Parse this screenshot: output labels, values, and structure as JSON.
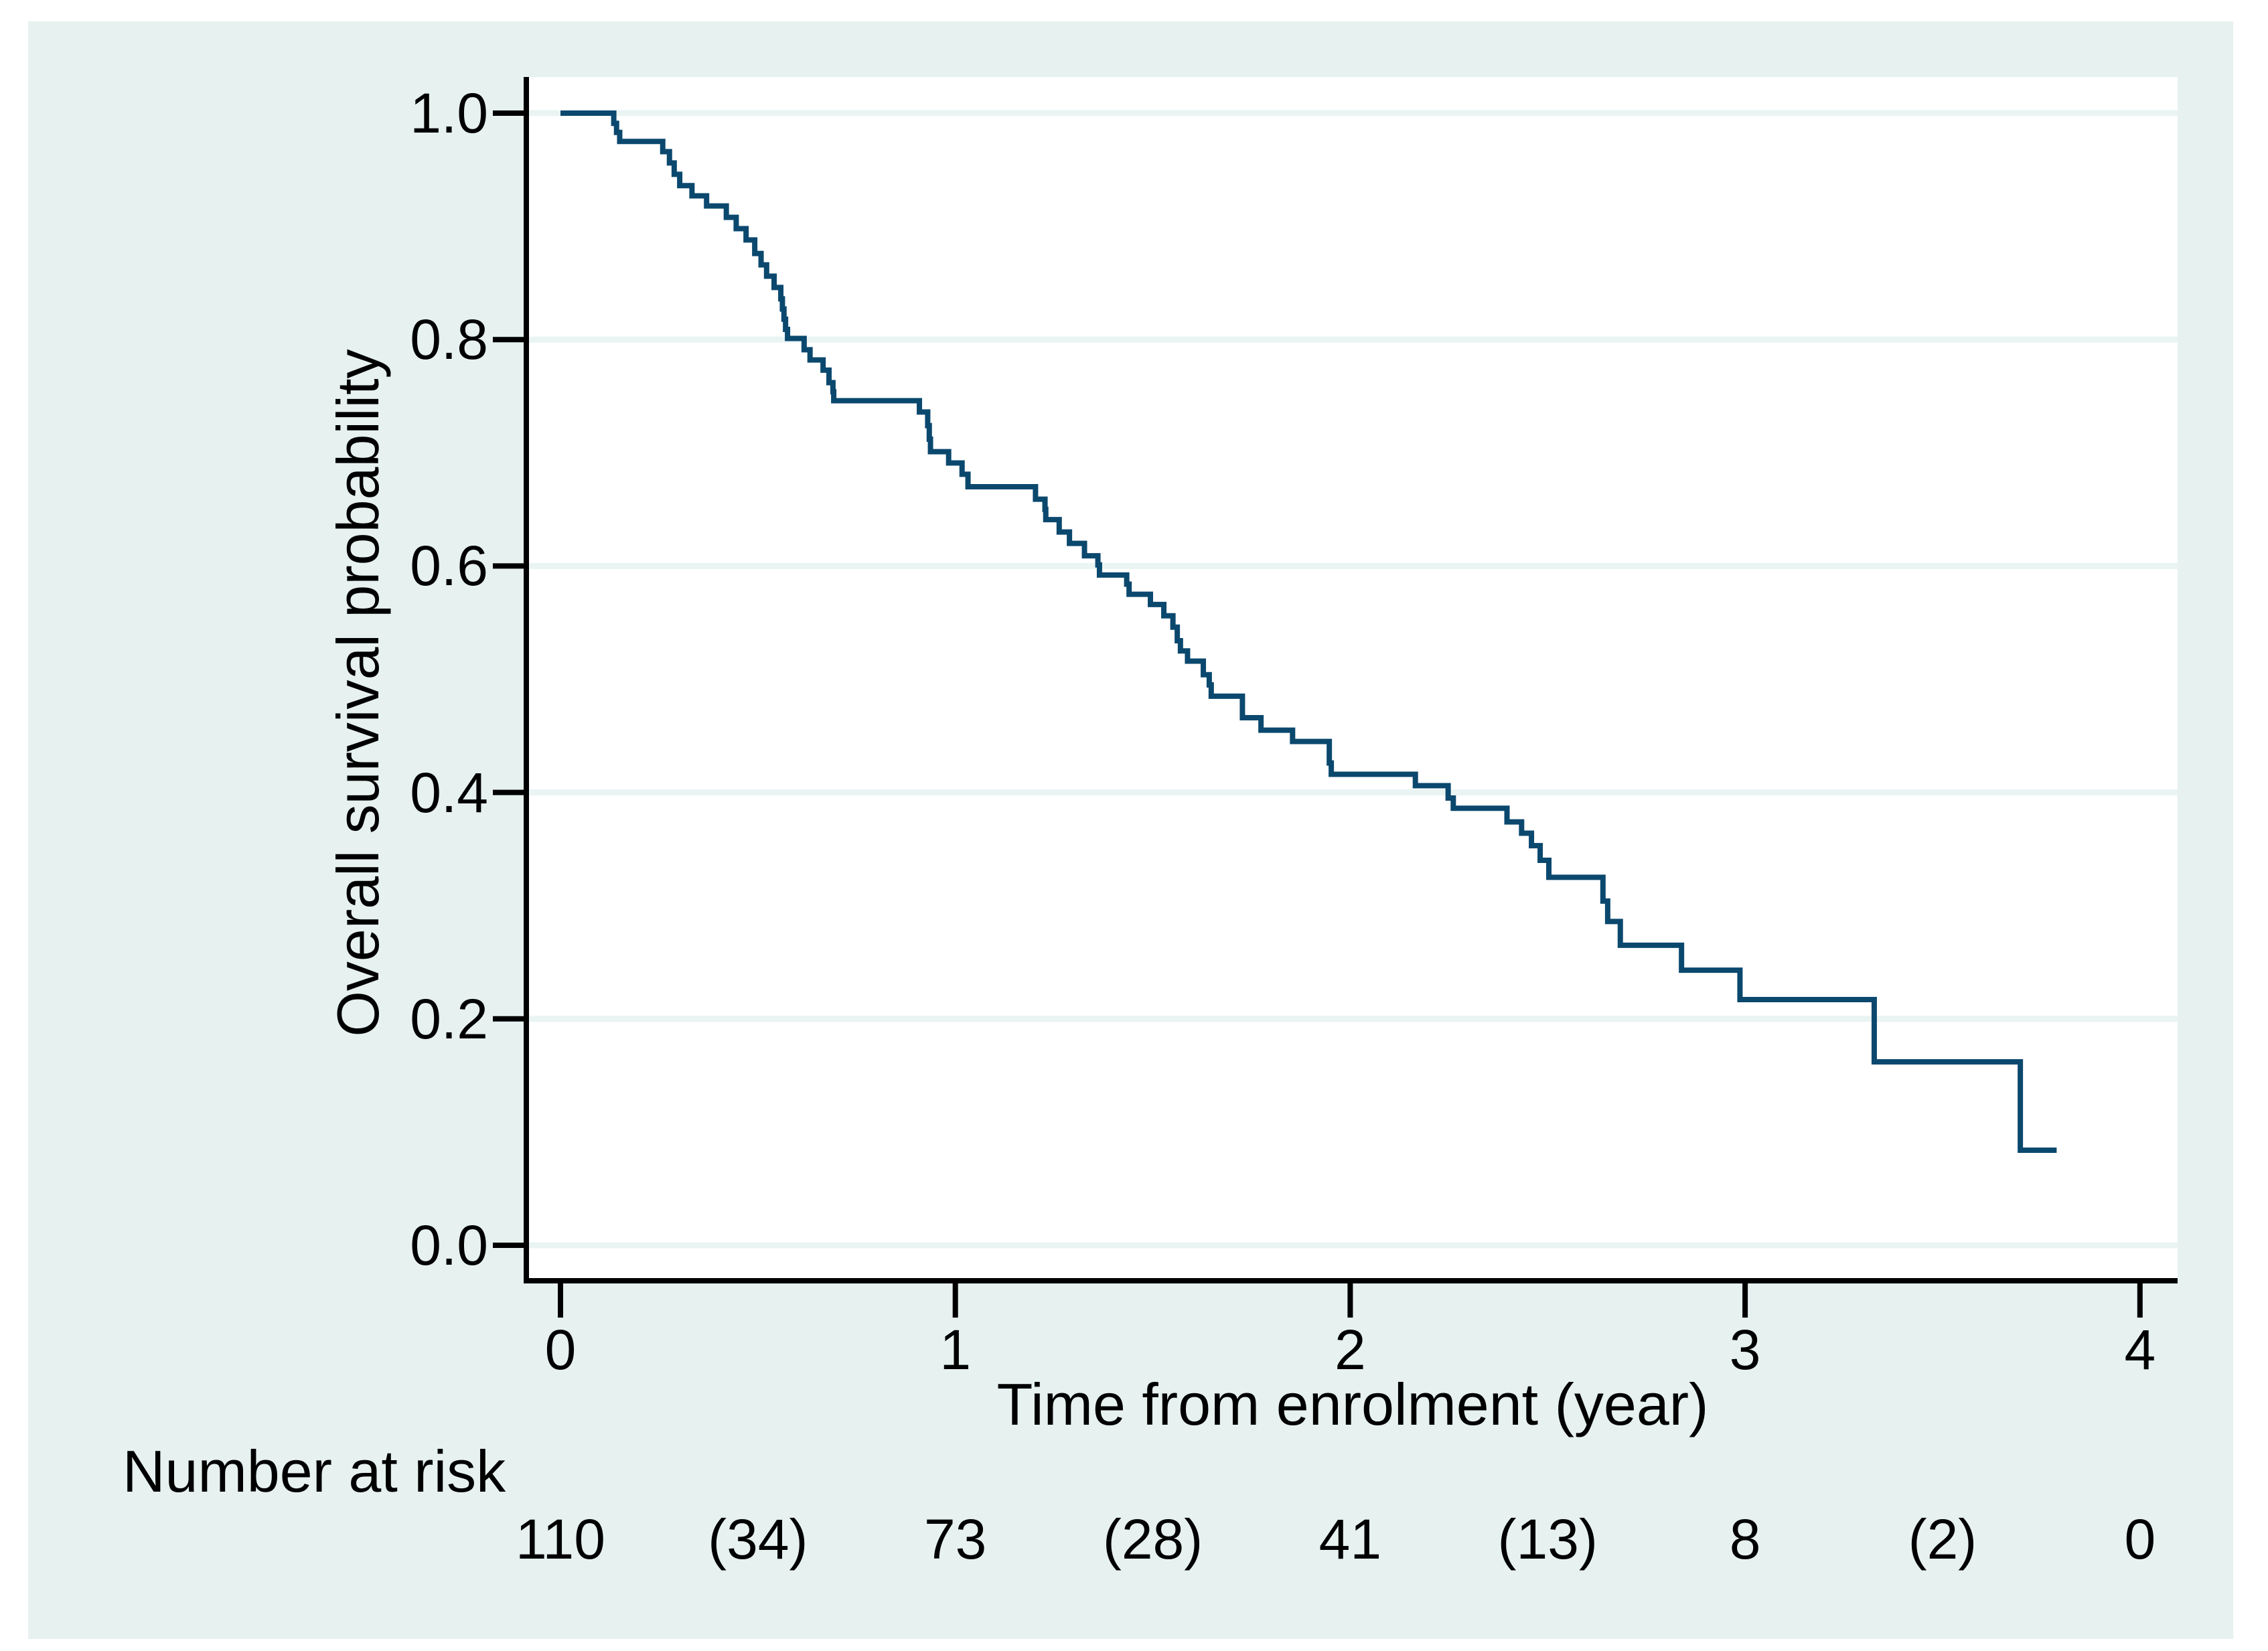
{
  "figure": {
    "page_background": "#ffffff",
    "canvas_background": "#e6f1f0",
    "plot_background": "#ffffff",
    "grid_color": "#e9f4f3",
    "axis_color": "#000000",
    "text_color": "#000000",
    "curve_color": "#0b486e"
  },
  "chart_data": {
    "type": "line",
    "subtype": "kaplan-meier-step-curve",
    "title": "",
    "xlabel": "Time from enrolment (year)",
    "ylabel": "Overall survival probability",
    "xlim": [
      0,
      4
    ],
    "ylim": [
      0.0,
      1.0
    ],
    "grid": "horizontal-only",
    "legend_position": "none",
    "xticks": [
      "0",
      "1",
      "2",
      "3",
      "4"
    ],
    "yticks_top_to_bottom": [
      "1.0",
      "0.8",
      "0.6",
      "0.4",
      "0.2",
      "0.0"
    ],
    "series": [
      {
        "name": "Overall survival probability",
        "start_point": [
          0.0,
          1.0
        ],
        "end_time": 3.789,
        "step_points": [
          [
            0.135,
            0.991
          ],
          [
            0.142,
            0.983
          ],
          [
            0.15,
            0.975
          ],
          [
            0.259,
            0.966
          ],
          [
            0.276,
            0.956
          ],
          [
            0.288,
            0.946
          ],
          [
            0.302,
            0.936
          ],
          [
            0.333,
            0.927
          ],
          [
            0.37,
            0.918
          ],
          [
            0.42,
            0.908
          ],
          [
            0.445,
            0.898
          ],
          [
            0.47,
            0.888
          ],
          [
            0.492,
            0.876
          ],
          [
            0.508,
            0.866
          ],
          [
            0.522,
            0.856
          ],
          [
            0.541,
            0.846
          ],
          [
            0.558,
            0.836
          ],
          [
            0.562,
            0.827
          ],
          [
            0.566,
            0.818
          ],
          [
            0.57,
            0.809
          ],
          [
            0.575,
            0.801
          ],
          [
            0.617,
            0.791
          ],
          [
            0.632,
            0.782
          ],
          [
            0.665,
            0.773
          ],
          [
            0.68,
            0.762
          ],
          [
            0.69,
            0.754
          ],
          [
            0.692,
            0.746
          ],
          [
            0.909,
            0.736
          ],
          [
            0.93,
            0.724
          ],
          [
            0.934,
            0.712
          ],
          [
            0.937,
            0.701
          ],
          [
            0.983,
            0.691
          ],
          [
            1.017,
            0.681
          ],
          [
            1.032,
            0.67
          ],
          [
            1.203,
            0.659
          ],
          [
            1.227,
            0.65
          ],
          [
            1.229,
            0.641
          ],
          [
            1.263,
            0.63
          ],
          [
            1.289,
            0.62
          ],
          [
            1.327,
            0.609
          ],
          [
            1.361,
            0.601
          ],
          [
            1.365,
            0.592
          ],
          [
            1.434,
            0.584
          ],
          [
            1.44,
            0.575
          ],
          [
            1.494,
            0.566
          ],
          [
            1.528,
            0.556
          ],
          [
            1.551,
            0.546
          ],
          [
            1.562,
            0.534
          ],
          [
            1.57,
            0.525
          ],
          [
            1.588,
            0.516
          ],
          [
            1.628,
            0.504
          ],
          [
            1.643,
            0.495
          ],
          [
            1.648,
            0.485
          ],
          [
            1.727,
            0.466
          ],
          [
            1.774,
            0.455
          ],
          [
            1.854,
            0.445
          ],
          [
            1.947,
            0.426
          ],
          [
            1.952,
            0.416
          ],
          [
            2.165,
            0.406
          ],
          [
            2.248,
            0.395
          ],
          [
            2.261,
            0.386
          ],
          [
            2.397,
            0.374
          ],
          [
            2.434,
            0.364
          ],
          [
            2.459,
            0.353
          ],
          [
            2.481,
            0.34
          ],
          [
            2.503,
            0.325
          ],
          [
            2.64,
            0.304
          ],
          [
            2.652,
            0.286
          ],
          [
            2.684,
            0.265
          ],
          [
            2.839,
            0.243
          ],
          [
            2.987,
            0.217
          ],
          [
            3.327,
            0.162
          ],
          [
            3.697,
            0.084
          ]
        ]
      }
    ]
  },
  "risk_table": {
    "label": "Number at risk",
    "times": [
      0,
      0.5,
      1,
      1.5,
      2,
      2.5,
      3,
      3.5,
      4
    ],
    "values": [
      "110",
      "(34)",
      "73",
      "(28)",
      "41",
      "(13)",
      "8",
      "(2)",
      "0"
    ]
  }
}
